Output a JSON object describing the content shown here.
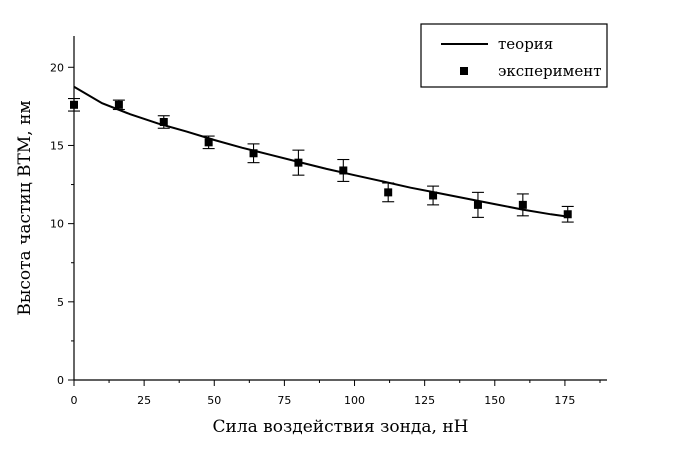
{
  "chart_data": {
    "type": "scatter",
    "xlabel": "Сила воздействия зонда, нН",
    "ylabel": "Высота частиц BTM, нм",
    "xlim": [
      0,
      190
    ],
    "ylim": [
      0,
      22
    ],
    "x_ticks": [
      0,
      25,
      50,
      75,
      100,
      125,
      150,
      175
    ],
    "y_ticks": [
      0,
      5,
      10,
      15,
      20
    ],
    "x_tick_labels": [
      "0",
      "25",
      "50",
      "75",
      "100",
      "125",
      "150",
      "175"
    ],
    "y_tick_labels": [
      "0",
      "5",
      "10",
      "15",
      "20"
    ],
    "grid": false,
    "legend_position": "top-right",
    "series": [
      {
        "name": "теория",
        "kind": "line",
        "x": [
          0,
          10,
          20,
          30,
          40,
          50,
          60,
          70,
          80,
          90,
          100,
          110,
          120,
          130,
          140,
          150,
          160,
          170,
          176
        ],
        "y": [
          18.75,
          17.7,
          17.0,
          16.4,
          15.9,
          15.35,
          14.85,
          14.4,
          13.95,
          13.5,
          13.1,
          12.7,
          12.3,
          11.95,
          11.6,
          11.25,
          10.9,
          10.6,
          10.45
        ]
      },
      {
        "name": "эксперимент",
        "kind": "scatter",
        "x": [
          0,
          16,
          32,
          48,
          64,
          80,
          96,
          112,
          128,
          144,
          160,
          176
        ],
        "y": [
          17.6,
          17.6,
          16.5,
          15.2,
          14.5,
          13.9,
          13.4,
          12.0,
          11.8,
          11.2,
          11.2,
          10.6
        ],
        "yerr": [
          0.4,
          0.3,
          0.4,
          0.4,
          0.6,
          0.8,
          0.7,
          0.6,
          0.6,
          0.8,
          0.7,
          0.5
        ]
      }
    ]
  }
}
